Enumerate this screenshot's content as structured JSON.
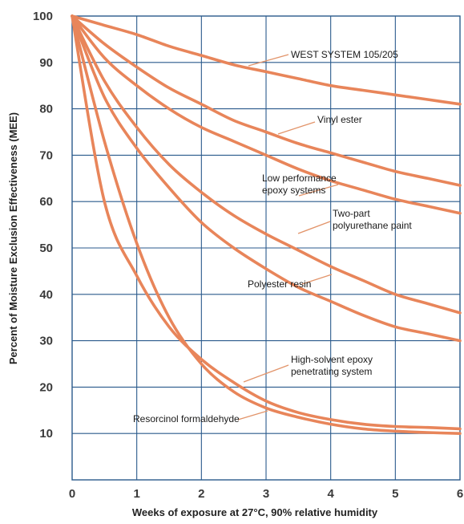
{
  "chart_data": {
    "type": "line",
    "title": "",
    "xlabel": "Weeks of exposure at 27°C, 90% relative humidity",
    "ylabel": "Percent of Moisture Exclusion Effectiveness (MEE)",
    "xlim": [
      0,
      6
    ],
    "ylim": [
      0,
      100
    ],
    "x_ticks": [
      "0",
      "1",
      "2",
      "3",
      "4",
      "5",
      "6"
    ],
    "y_ticks": [
      "10",
      "20",
      "30",
      "40",
      "50",
      "60",
      "70",
      "80",
      "90",
      "100"
    ],
    "grid": true,
    "legend": "none (curves labeled directly)",
    "line_color": "#e8855a",
    "x": [
      0,
      0.5,
      1,
      1.5,
      2,
      2.5,
      3,
      3.5,
      4,
      4.5,
      5,
      5.5,
      6
    ],
    "series": [
      {
        "name": "WEST SYSTEM 105/205",
        "values": [
          100,
          98,
          96,
          93.5,
          91.5,
          89.5,
          88,
          86.5,
          85,
          84,
          83,
          82,
          81
        ]
      },
      {
        "name": "Vinyl ester",
        "values": [
          100,
          94,
          89,
          84.5,
          81,
          77.5,
          75,
          72.5,
          70.5,
          68.5,
          66.5,
          65,
          63.5
        ]
      },
      {
        "name": "Low performance epoxy systems",
        "values": [
          100,
          91,
          85,
          80,
          76,
          73,
          70,
          67,
          64.5,
          62.5,
          60.5,
          59,
          57.5
        ]
      },
      {
        "name": "Two-part polyurethane paint",
        "values": [
          100,
          86,
          76,
          68,
          62,
          57,
          53,
          49.5,
          46,
          43,
          40,
          38,
          36
        ]
      },
      {
        "name": "Polyester resin",
        "values": [
          100,
          82.5,
          71.5,
          63,
          55.5,
          50,
          45.5,
          41.5,
          38.5,
          35.5,
          33,
          31.5,
          30
        ]
      },
      {
        "name": "High-solvent epoxy penetrating system",
        "values": [
          100,
          60,
          44,
          33,
          26,
          21,
          17,
          14.5,
          13,
          12,
          11.5,
          11.3,
          11
        ]
      },
      {
        "name": "Resorcinol formaldehyde",
        "values": [
          100,
          73,
          51,
          35,
          25,
          19,
          15.5,
          13.5,
          12,
          11,
          10.5,
          10.2,
          10
        ]
      }
    ],
    "annotations": [
      {
        "text": "WEST SYSTEM 105/205"
      },
      {
        "text": "Vinyl ester"
      },
      {
        "lines": [
          "Low performance",
          "epoxy systems"
        ]
      },
      {
        "lines": [
          "Two-part",
          "polyurethane paint"
        ]
      },
      {
        "text": "Polyester resin"
      },
      {
        "lines": [
          "High-solvent epoxy",
          "penetrating system"
        ]
      },
      {
        "text": "Resorcinol formaldehyde"
      }
    ]
  }
}
